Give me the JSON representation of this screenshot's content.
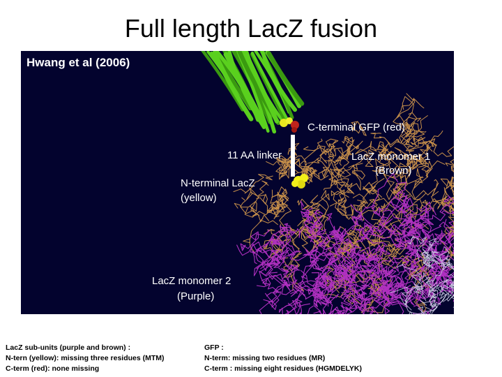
{
  "slide": {
    "title": "Full length LacZ fusion",
    "figure": {
      "citation": "Hwang et al (2006)",
      "labels": [
        "C-terminal GFP (red)",
        "11 AA linker",
        "LacZ monomer 1",
        "(Brown)",
        "N-terminal LacZ",
        "(yellow)",
        "LacZ monomer 2",
        "(Purple)"
      ]
    },
    "notes": {
      "left": [
        "LacZ sub-units (purple and brown) :",
        "N-tern (yellow): missing three residues (MTM)",
        "C-term (red): none missing"
      ],
      "right": [
        "GFP :",
        "N-term: missing two residues (MR)",
        "C-term : missing eight residues (HGMDELYK)"
      ]
    }
  }
}
